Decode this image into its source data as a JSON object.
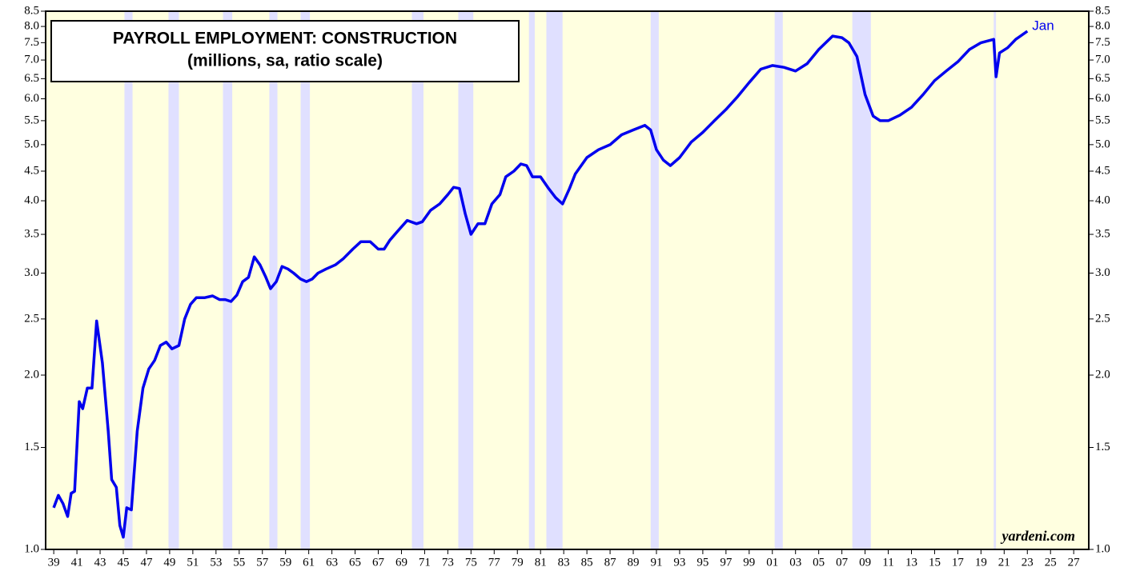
{
  "chart_data": {
    "type": "line",
    "title": "PAYROLL EMPLOYMENT: CONSTRUCTION",
    "subtitle": "(millions, sa, ratio scale)",
    "annotation": "Jan",
    "source": "yardeni.com",
    "log_scale": true,
    "background": "#ffffe0",
    "recession_color": "#e0e0ff",
    "recessions": [
      [
        1945.1,
        1945.8
      ],
      [
        1948.9,
        1949.8
      ],
      [
        1953.6,
        1954.4
      ],
      [
        1957.6,
        1958.3
      ],
      [
        1960.3,
        1961.1
      ],
      [
        1969.9,
        1970.9
      ],
      [
        1973.9,
        1975.2
      ],
      [
        1980.0,
        1980.5
      ],
      [
        1981.5,
        1982.9
      ],
      [
        1990.5,
        1991.2
      ],
      [
        2001.2,
        2001.9
      ],
      [
        2007.9,
        2009.5
      ],
      [
        2020.1,
        2020.3
      ]
    ],
    "xlim": [
      1938.3,
      2028.3
    ],
    "ylim": [
      1.0,
      8.5
    ],
    "xticks": [
      {
        "value": 1939,
        "label": "39"
      },
      {
        "value": 1941,
        "label": "41"
      },
      {
        "value": 1943,
        "label": "43"
      },
      {
        "value": 1945,
        "label": "45"
      },
      {
        "value": 1947,
        "label": "47"
      },
      {
        "value": 1949,
        "label": "49"
      },
      {
        "value": 1951,
        "label": "51"
      },
      {
        "value": 1953,
        "label": "53"
      },
      {
        "value": 1955,
        "label": "55"
      },
      {
        "value": 1957,
        "label": "57"
      },
      {
        "value": 1959,
        "label": "59"
      },
      {
        "value": 1961,
        "label": "61"
      },
      {
        "value": 1963,
        "label": "63"
      },
      {
        "value": 1965,
        "label": "65"
      },
      {
        "value": 1967,
        "label": "67"
      },
      {
        "value": 1969,
        "label": "69"
      },
      {
        "value": 1971,
        "label": "71"
      },
      {
        "value": 1973,
        "label": "73"
      },
      {
        "value": 1975,
        "label": "75"
      },
      {
        "value": 1977,
        "label": "77"
      },
      {
        "value": 1979,
        "label": "79"
      },
      {
        "value": 1981,
        "label": "81"
      },
      {
        "value": 1983,
        "label": "83"
      },
      {
        "value": 1985,
        "label": "85"
      },
      {
        "value": 1987,
        "label": "87"
      },
      {
        "value": 1989,
        "label": "89"
      },
      {
        "value": 1991,
        "label": "91"
      },
      {
        "value": 1993,
        "label": "93"
      },
      {
        "value": 1995,
        "label": "95"
      },
      {
        "value": 1997,
        "label": "97"
      },
      {
        "value": 1999,
        "label": "99"
      },
      {
        "value": 2001,
        "label": "01"
      },
      {
        "value": 2003,
        "label": "03"
      },
      {
        "value": 2005,
        "label": "05"
      },
      {
        "value": 2007,
        "label": "07"
      },
      {
        "value": 2009,
        "label": "09"
      },
      {
        "value": 2011,
        "label": "11"
      },
      {
        "value": 2013,
        "label": "13"
      },
      {
        "value": 2015,
        "label": "15"
      },
      {
        "value": 2017,
        "label": "17"
      },
      {
        "value": 2019,
        "label": "19"
      },
      {
        "value": 2021,
        "label": "21"
      },
      {
        "value": 2023,
        "label": "23"
      },
      {
        "value": 2025,
        "label": "25"
      },
      {
        "value": 2027,
        "label": "27"
      }
    ],
    "yticks": [
      {
        "value": 1.0,
        "label": "1.0"
      },
      1.5,
      {
        "value": 2.0,
        "label": "2.0"
      },
      2.5,
      {
        "value": 3.0,
        "label": "3.0"
      },
      3.5,
      {
        "value": 4.0,
        "label": "4.0"
      },
      4.5,
      {
        "value": 5.0,
        "label": "5.0"
      },
      5.5,
      {
        "value": 6.0,
        "label": "6.0"
      },
      6.5,
      {
        "value": 7.0,
        "label": "7.0"
      },
      7.5,
      {
        "value": 8.0,
        "label": "8.0"
      },
      8.5
    ],
    "series": [
      {
        "color": "#0000ee",
        "x": [
          1939.0,
          1939.4,
          1939.8,
          1940.2,
          1940.5,
          1940.8,
          1941.2,
          1941.5,
          1941.9,
          1942.3,
          1942.7,
          1943.2,
          1943.7,
          1944.0,
          1944.4,
          1944.7,
          1945.0,
          1945.3,
          1945.7,
          1946.2,
          1946.7,
          1947.2,
          1947.7,
          1948.2,
          1948.7,
          1949.2,
          1949.8,
          1950.3,
          1950.8,
          1951.3,
          1952.0,
          1952.7,
          1953.3,
          1953.8,
          1954.3,
          1954.8,
          1955.3,
          1955.8,
          1956.3,
          1956.8,
          1957.3,
          1957.7,
          1958.2,
          1958.7,
          1959.2,
          1959.7,
          1960.3,
          1960.8,
          1961.3,
          1961.8,
          1962.5,
          1963.3,
          1964.0,
          1964.8,
          1965.5,
          1966.3,
          1967.0,
          1967.5,
          1968.0,
          1968.7,
          1969.5,
          1970.3,
          1970.8,
          1971.5,
          1972.3,
          1973.0,
          1973.5,
          1974.0,
          1974.5,
          1975.0,
          1975.6,
          1976.2,
          1976.8,
          1977.5,
          1978.0,
          1978.7,
          1979.3,
          1979.8,
          1980.3,
          1981.0,
          1981.7,
          1982.3,
          1982.9,
          1983.5,
          1984.0,
          1985.0,
          1986.0,
          1987.0,
          1988.0,
          1989.0,
          1990.0,
          1990.5,
          1991.0,
          1991.6,
          1992.2,
          1993.0,
          1994.0,
          1995.0,
          1996.0,
          1997.0,
          1998.0,
          1999.0,
          2000.0,
          2001.0,
          2002.0,
          2003.0,
          2004.0,
          2005.0,
          2006.2,
          2007.0,
          2007.6,
          2008.3,
          2009.0,
          2009.7,
          2010.3,
          2011.0,
          2012.0,
          2013.0,
          2014.0,
          2015.0,
          2016.0,
          2017.0,
          2018.0,
          2019.0,
          2020.1,
          2020.3,
          2020.6,
          2021.3,
          2022.0,
          2023.0
        ],
        "values": [
          1.18,
          1.24,
          1.2,
          1.14,
          1.25,
          1.26,
          1.8,
          1.75,
          1.9,
          1.9,
          2.48,
          2.1,
          1.6,
          1.32,
          1.28,
          1.1,
          1.05,
          1.18,
          1.17,
          1.6,
          1.9,
          2.05,
          2.12,
          2.25,
          2.28,
          2.22,
          2.25,
          2.5,
          2.65,
          2.72,
          2.72,
          2.74,
          2.7,
          2.7,
          2.68,
          2.75,
          2.9,
          2.95,
          3.2,
          3.1,
          2.95,
          2.82,
          2.9,
          3.08,
          3.05,
          3.0,
          2.93,
          2.9,
          2.93,
          3.0,
          3.05,
          3.1,
          3.18,
          3.3,
          3.4,
          3.4,
          3.3,
          3.3,
          3.42,
          3.55,
          3.7,
          3.65,
          3.68,
          3.85,
          3.95,
          4.1,
          4.22,
          4.2,
          3.8,
          3.5,
          3.65,
          3.65,
          3.95,
          4.1,
          4.4,
          4.5,
          4.63,
          4.6,
          4.4,
          4.4,
          4.2,
          4.05,
          3.95,
          4.2,
          4.45,
          4.75,
          4.9,
          5.0,
          5.2,
          5.3,
          5.4,
          5.3,
          4.9,
          4.7,
          4.6,
          4.75,
          5.05,
          5.25,
          5.5,
          5.75,
          6.05,
          6.4,
          6.75,
          6.85,
          6.8,
          6.7,
          6.9,
          7.3,
          7.7,
          7.65,
          7.5,
          7.1,
          6.1,
          5.6,
          5.5,
          5.5,
          5.62,
          5.8,
          6.1,
          6.45,
          6.7,
          6.95,
          7.3,
          7.5,
          7.6,
          6.55,
          7.2,
          7.35,
          7.6,
          7.85
        ]
      }
    ]
  }
}
